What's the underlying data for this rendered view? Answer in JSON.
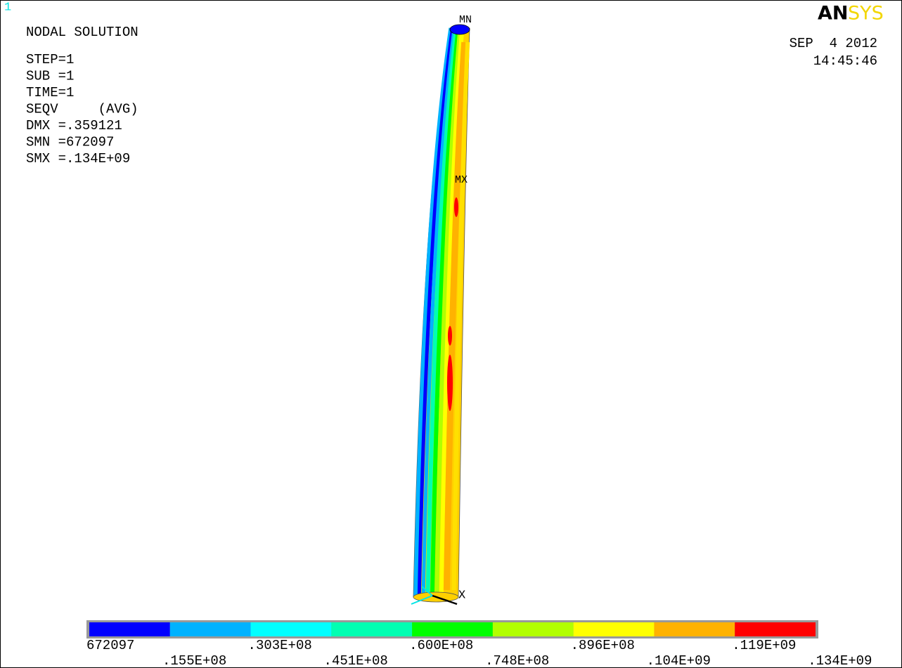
{
  "window_number": "1",
  "logo": {
    "first": "AN",
    "second": "SYS"
  },
  "info": {
    "title": "NODAL SOLUTION",
    "lines": [
      "STEP=1",
      "SUB =1",
      "TIME=1",
      "SEQV     (AVG)",
      "DMX =.359121",
      "SMN =672097",
      "SMX =.134E+09"
    ]
  },
  "date": "SEP  4 2012",
  "time": "14:45:46",
  "markers": {
    "min": "MN",
    "max": "MX",
    "axis_x": "X"
  },
  "legend": {
    "colors": [
      "#0000ff",
      "#00b2ff",
      "#00ffff",
      "#00ffb2",
      "#00ff00",
      "#b2ff00",
      "#ffff00",
      "#ffb200",
      "#ff0000"
    ],
    "labels": [
      "672097",
      ".155E+08",
      ".303E+08",
      ".451E+08",
      ".600E+08",
      ".748E+08",
      ".896E+08",
      ".104E+09",
      ".119E+09",
      ".134E+09"
    ]
  }
}
